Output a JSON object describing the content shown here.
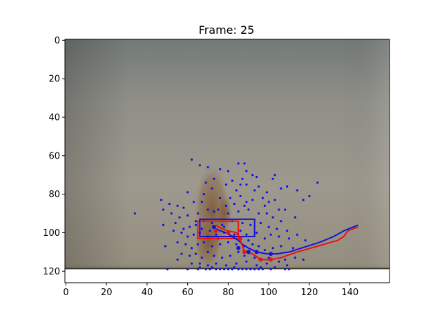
{
  "chart_data": {
    "type": "scatter",
    "title": "Frame: 25",
    "xlabel": "",
    "ylabel": "",
    "xlim": [
      -0.5,
      159.5
    ],
    "ylim": [
      126,
      -0.5
    ],
    "y_inverted": true,
    "grid": false,
    "x_ticks": [
      0,
      20,
      40,
      60,
      80,
      100,
      120,
      140
    ],
    "y_ticks": [
      0,
      20,
      40,
      60,
      80,
      100,
      120
    ],
    "image": {
      "description_color_top": "#7b8079",
      "color_mid": "#9c978c",
      "color_bottom": "#8f8a78",
      "floor_line_y": 119
    },
    "colors": {
      "points": "#1010e8",
      "red": "#e81414",
      "blue": "#1414d8"
    },
    "points": [
      [
        62,
        62
      ],
      [
        66,
        65
      ],
      [
        70,
        66
      ],
      [
        76,
        67
      ],
      [
        80,
        68
      ],
      [
        85,
        64
      ],
      [
        88,
        64
      ],
      [
        89,
        68
      ],
      [
        87,
        72
      ],
      [
        92,
        70
      ],
      [
        94,
        71
      ],
      [
        102,
        72
      ],
      [
        103,
        70
      ],
      [
        124,
        74
      ],
      [
        82,
        73
      ],
      [
        73,
        72
      ],
      [
        69,
        74
      ],
      [
        79,
        75
      ],
      [
        86,
        75
      ],
      [
        89,
        75
      ],
      [
        95,
        76
      ],
      [
        99,
        79
      ],
      [
        106,
        77
      ],
      [
        109,
        76
      ],
      [
        114,
        78
      ],
      [
        120,
        81
      ],
      [
        60,
        79
      ],
      [
        68,
        80
      ],
      [
        72,
        77
      ],
      [
        84,
        78
      ],
      [
        93,
        78
      ],
      [
        97,
        82
      ],
      [
        100,
        84
      ],
      [
        47,
        83
      ],
      [
        51,
        85
      ],
      [
        55,
        86
      ],
      [
        58,
        87
      ],
      [
        63,
        84
      ],
      [
        67,
        84
      ],
      [
        76,
        82
      ],
      [
        81,
        82
      ],
      [
        86,
        81
      ],
      [
        89,
        84
      ],
      [
        92,
        83
      ],
      [
        98,
        86
      ],
      [
        103,
        83
      ],
      [
        105,
        88
      ],
      [
        108,
        88
      ],
      [
        117,
        83
      ],
      [
        34,
        90
      ],
      [
        48,
        88
      ],
      [
        52,
        90
      ],
      [
        56,
        92
      ],
      [
        60,
        91
      ],
      [
        65,
        90
      ],
      [
        70,
        88
      ],
      [
        75,
        88
      ],
      [
        80,
        90
      ],
      [
        85,
        89
      ],
      [
        90,
        88
      ],
      [
        95,
        90
      ],
      [
        99,
        90
      ],
      [
        102,
        92
      ],
      [
        106,
        94
      ],
      [
        113,
        92
      ],
      [
        48,
        96
      ],
      [
        54,
        95
      ],
      [
        58,
        98
      ],
      [
        61,
        97
      ],
      [
        64,
        94
      ],
      [
        68,
        94
      ],
      [
        72,
        95
      ],
      [
        77,
        96
      ],
      [
        82,
        94
      ],
      [
        87,
        95
      ],
      [
        91,
        96
      ],
      [
        96,
        95
      ],
      [
        100,
        97
      ],
      [
        104,
        98
      ],
      [
        109,
        99
      ],
      [
        53,
        99
      ],
      [
        57,
        100
      ],
      [
        60,
        102
      ],
      [
        63,
        101
      ],
      [
        66,
        100
      ],
      [
        70,
        102
      ],
      [
        74,
        101
      ],
      [
        78,
        100
      ],
      [
        83,
        101
      ],
      [
        86,
        99
      ],
      [
        89,
        101
      ],
      [
        94,
        100
      ],
      [
        98,
        103
      ],
      [
        101,
        101
      ],
      [
        105,
        102
      ],
      [
        110,
        103
      ],
      [
        114,
        101
      ],
      [
        118,
        104
      ],
      [
        49,
        107
      ],
      [
        55,
        105
      ],
      [
        59,
        106
      ],
      [
        62,
        108
      ],
      [
        65,
        106
      ],
      [
        68,
        105
      ],
      [
        72,
        107
      ],
      [
        76,
        106
      ],
      [
        80,
        105
      ],
      [
        84,
        106
      ],
      [
        88,
        107
      ],
      [
        92,
        106
      ],
      [
        95,
        107
      ],
      [
        98,
        109
      ],
      [
        102,
        108
      ],
      [
        106,
        107
      ],
      [
        112,
        108
      ],
      [
        57,
        111
      ],
      [
        61,
        112
      ],
      [
        64,
        111
      ],
      [
        67,
        113
      ],
      [
        70,
        110
      ],
      [
        73,
        112
      ],
      [
        77,
        113
      ],
      [
        81,
        112
      ],
      [
        85,
        110
      ],
      [
        88,
        112
      ],
      [
        93,
        113
      ],
      [
        96,
        114
      ],
      [
        100,
        113
      ],
      [
        105,
        115
      ],
      [
        108,
        114
      ],
      [
        113,
        113
      ],
      [
        117,
        114
      ],
      [
        55,
        114
      ],
      [
        62,
        116
      ],
      [
        66,
        116
      ],
      [
        70,
        117
      ],
      [
        74,
        116
      ],
      [
        79,
        117
      ],
      [
        84,
        116
      ],
      [
        89,
        115
      ],
      [
        94,
        117
      ],
      [
        99,
        116
      ],
      [
        103,
        118
      ],
      [
        109,
        117
      ],
      [
        50,
        119
      ],
      [
        60,
        119
      ],
      [
        65,
        119
      ],
      [
        69,
        119
      ],
      [
        71,
        119
      ],
      [
        74,
        119
      ],
      [
        76,
        119
      ],
      [
        78,
        119
      ],
      [
        80,
        119
      ],
      [
        82,
        119
      ],
      [
        85,
        119
      ],
      [
        87,
        119
      ],
      [
        89,
        119
      ],
      [
        91,
        119
      ],
      [
        93,
        119
      ],
      [
        95,
        119
      ],
      [
        97,
        119
      ],
      [
        101,
        119
      ],
      [
        108,
        119
      ],
      [
        110,
        119
      ],
      [
        66,
        118
      ],
      [
        72,
        118
      ],
      [
        83,
        118
      ],
      [
        96,
        118
      ],
      [
        64,
        96
      ],
      [
        67,
        98
      ],
      [
        71,
        99
      ],
      [
        75,
        103
      ],
      [
        78,
        97
      ],
      [
        82,
        102
      ],
      [
        86,
        103
      ],
      [
        90,
        104
      ],
      [
        73,
        89
      ],
      [
        79,
        86
      ],
      [
        83,
        85
      ],
      [
        88,
        86
      ]
    ],
    "red_box": {
      "x0": 65,
      "y0": 94,
      "x1": 85,
      "y1": 103
    },
    "blue_box": {
      "x0": 66,
      "y0": 93,
      "x1": 93,
      "y1": 102
    },
    "red_track": [
      [
        144,
        97
      ],
      [
        139,
        99
      ],
      [
        137,
        102
      ],
      [
        134,
        104
      ],
      [
        124,
        107
      ],
      [
        114,
        110
      ],
      [
        106,
        113
      ],
      [
        101,
        114
      ],
      [
        96,
        114
      ],
      [
        92,
        111
      ],
      [
        88,
        110
      ],
      [
        87,
        107
      ],
      [
        86,
        104
      ],
      [
        84,
        100
      ],
      [
        80,
        99
      ],
      [
        77,
        98
      ],
      [
        74,
        96
      ]
    ],
    "blue_track": [
      [
        144,
        96
      ],
      [
        137,
        99
      ],
      [
        132,
        102
      ],
      [
        125,
        105
      ],
      [
        116,
        108
      ],
      [
        110,
        110
      ],
      [
        104,
        111
      ],
      [
        99,
        111
      ],
      [
        94,
        110
      ],
      [
        90,
        108
      ],
      [
        87,
        106
      ],
      [
        85,
        104
      ],
      [
        82,
        102
      ],
      [
        79,
        100
      ],
      [
        76,
        99
      ],
      [
        74,
        98
      ]
    ],
    "red_markers": [
      [
        74,
        99
      ],
      [
        80,
        100
      ],
      [
        88,
        110
      ],
      [
        96,
        114
      ],
      [
        101,
        114
      ],
      [
        86,
        103
      ]
    ],
    "blue_markers": [
      [
        73,
        97
      ],
      [
        85,
        108
      ],
      [
        90,
        110
      ],
      [
        94,
        110
      ],
      [
        101,
        111
      ]
    ]
  }
}
